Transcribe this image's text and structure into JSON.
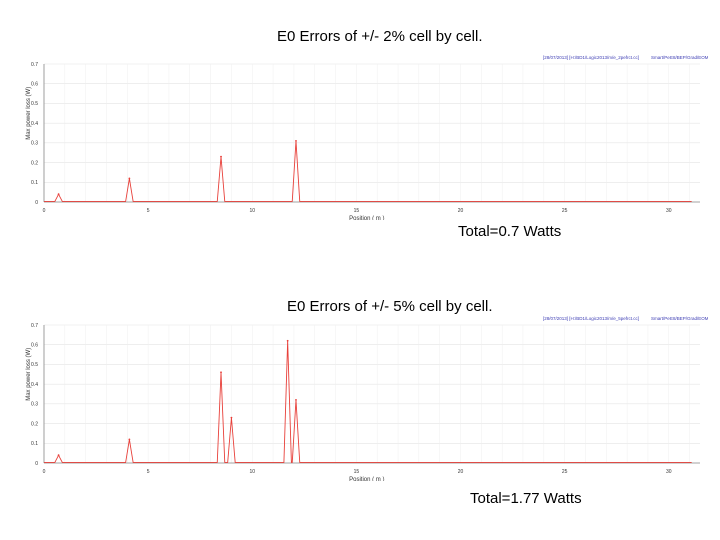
{
  "panels": [
    {
      "title": "E0 Errors of +/- 2% cell by cell.",
      "total": "Total=0.7 Watts",
      "header_left": "[28/07/2013] [H:/BD1/Logic2013/m/e_2pefrct.cc]",
      "header_mid": "Smart/Pe",
      "header_right": "E8/BEP/Grad/EOM"
    },
    {
      "title": "E0 Errors of +/- 5% cell by cell.",
      "total": "Total=1.77 Watts",
      "header_left": "[28/07/2013] [H:/BD1/Logic2013/m/e_5pefrct.cc]",
      "header_mid": "Smart/Pe",
      "header_right": "E8/BEP/Grad/EOM"
    }
  ],
  "chart_data": [
    {
      "type": "line",
      "title": "E0 Errors of +/- 2% cell by cell.",
      "xlabel": "Position ( m )",
      "ylabel": "Max power loss (W)",
      "xlim": [
        0,
        31.5
      ],
      "ylim": [
        0,
        0.7
      ],
      "x_ticks": [
        "0",
        "5",
        "10",
        "15",
        "20",
        "25",
        "30"
      ],
      "y_ticks": [
        "0",
        "0.1",
        "0.2",
        "0.3",
        "0.4",
        "0.5",
        "0.6",
        "0.7"
      ],
      "grid": true,
      "series": [
        {
          "color": "#e8403a",
          "peaks": [
            {
              "x": 0.7,
              "y": 0.04
            },
            {
              "x": 4.1,
              "y": 0.12
            },
            {
              "x": 8.5,
              "y": 0.23
            },
            {
              "x": 12.1,
              "y": 0.31
            }
          ]
        }
      ]
    },
    {
      "type": "line",
      "title": "E0 Errors of +/- 5% cell by cell.",
      "xlabel": "Position ( m )",
      "ylabel": "Max power loss (W)",
      "xlim": [
        0,
        31.5
      ],
      "ylim": [
        0,
        0.7
      ],
      "x_ticks": [
        "0",
        "5",
        "10",
        "15",
        "20",
        "25",
        "30"
      ],
      "y_ticks": [
        "0",
        "0.1",
        "0.2",
        "0.3",
        "0.4",
        "0.5",
        "0.6",
        "0.7"
      ],
      "grid": true,
      "series": [
        {
          "color": "#e8403a",
          "peaks": [
            {
              "x": 0.7,
              "y": 0.04
            },
            {
              "x": 4.1,
              "y": 0.12
            },
            {
              "x": 8.5,
              "y": 0.46
            },
            {
              "x": 9.0,
              "y": 0.23
            },
            {
              "x": 11.7,
              "y": 0.62
            },
            {
              "x": 12.1,
              "y": 0.32
            }
          ]
        }
      ]
    }
  ]
}
